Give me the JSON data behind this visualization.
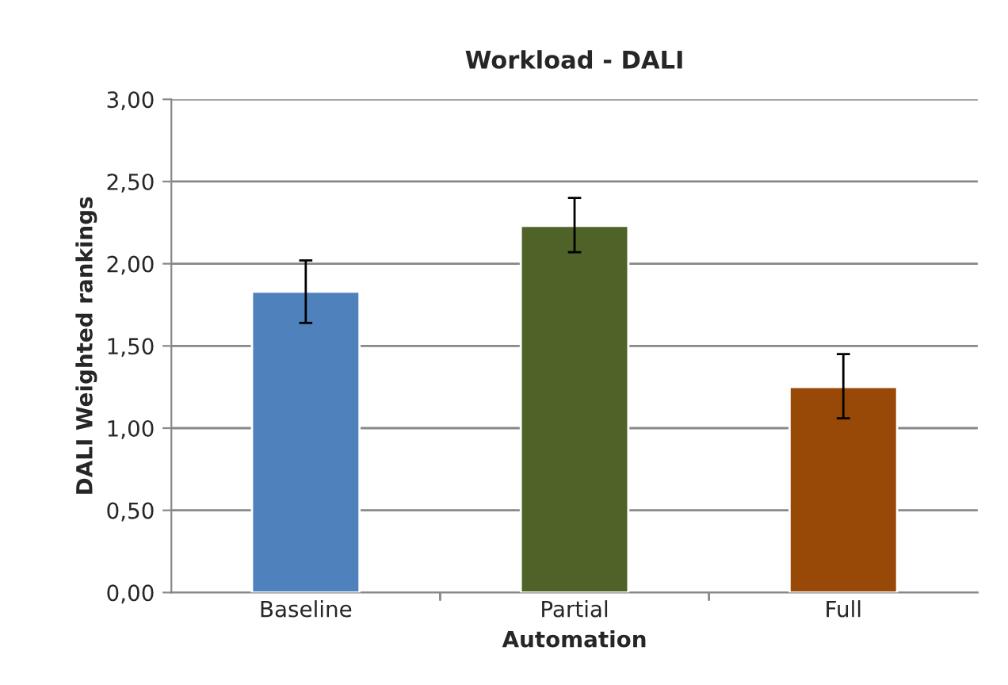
{
  "chart_data": {
    "type": "bar",
    "title": "Workload - DALI",
    "xlabel": "Automation",
    "ylabel": "DALI Weighted rankings",
    "categories": [
      "Baseline",
      "Partial",
      "Full"
    ],
    "values": [
      1.83,
      2.23,
      1.25
    ],
    "errors": [
      [
        1.64,
        2.02
      ],
      [
        2.07,
        2.4
      ],
      [
        1.06,
        1.45
      ]
    ],
    "colors": [
      "#4f81bd",
      "#4f6228",
      "#984807"
    ],
    "ylim": [
      0,
      3
    ],
    "yticks": [
      {
        "value": 0,
        "label": "0,00"
      },
      {
        "value": 0.5,
        "label": "0,50"
      },
      {
        "value": 1,
        "label": "1,00"
      },
      {
        "value": 1.5,
        "label": "1,50"
      },
      {
        "value": 2,
        "label": "2,00"
      },
      {
        "value": 2.5,
        "label": "2,50"
      },
      {
        "value": 3,
        "label": "3,00"
      }
    ],
    "grid": "y"
  }
}
